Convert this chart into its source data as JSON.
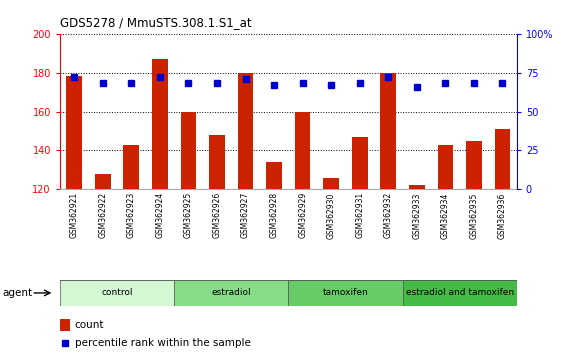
{
  "title": "GDS5278 / MmuSTS.308.1.S1_at",
  "samples": [
    "GSM362921",
    "GSM362922",
    "GSM362923",
    "GSM362924",
    "GSM362925",
    "GSM362926",
    "GSM362927",
    "GSM362928",
    "GSM362929",
    "GSM362930",
    "GSM362931",
    "GSM362932",
    "GSM362933",
    "GSM362934",
    "GSM362935",
    "GSM362936"
  ],
  "counts": [
    178,
    128,
    143,
    187,
    160,
    148,
    180,
    134,
    160,
    126,
    147,
    180,
    122,
    143,
    145,
    151
  ],
  "percentile_ranks": [
    72,
    68,
    68,
    72,
    68,
    68,
    71,
    67,
    68,
    67,
    68,
    72,
    66,
    68,
    68,
    68
  ],
  "ylim_left": [
    120,
    200
  ],
  "ylim_right": [
    0,
    100
  ],
  "yticks_left": [
    120,
    140,
    160,
    180,
    200
  ],
  "yticks_right": [
    0,
    25,
    50,
    75,
    100
  ],
  "groups": [
    {
      "label": "control",
      "start": 0,
      "end": 4,
      "color": "#d4f7d4"
    },
    {
      "label": "estradiol",
      "start": 4,
      "end": 8,
      "color": "#88dd88"
    },
    {
      "label": "tamoxifen",
      "start": 8,
      "end": 12,
      "color": "#66cc66"
    },
    {
      "label": "estradiol and tamoxifen",
      "start": 12,
      "end": 16,
      "color": "#44bb44"
    }
  ],
  "bar_color": "#cc2200",
  "dot_color": "#0000cc",
  "bar_width": 0.55,
  "background_color": "#ffffff",
  "plot_bg_color": "#ffffff",
  "grid_color": "#333333",
  "xlabel_agent": "agent",
  "legend_count": "count",
  "legend_percentile": "percentile rank within the sample"
}
